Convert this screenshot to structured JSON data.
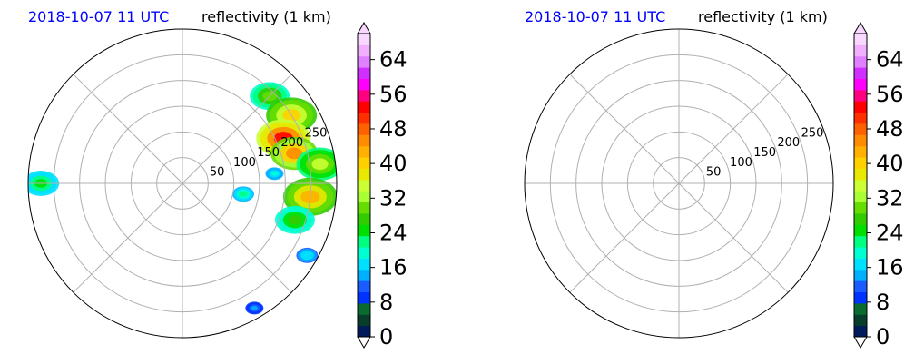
{
  "chart_data": [
    {
      "type": "heatmap",
      "projection": "polar",
      "title_left": "2018-10-07 11 UTC",
      "title_right": "reflectivity (1 km)",
      "title_left_color": "#0000ff",
      "radial_ticks": [
        "50",
        "100",
        "150",
        "200",
        "250"
      ],
      "radial_values": [
        50,
        100,
        150,
        200,
        250
      ],
      "r_max": 300,
      "grid": true,
      "echo_cells": [
        {
          "r": 240,
          "theta": 45,
          "value": 30,
          "size": 22
        },
        {
          "r": 250,
          "theta": 58,
          "value": 40,
          "size": 28
        },
        {
          "r": 215,
          "theta": 66,
          "value": 52,
          "size": 30
        },
        {
          "r": 225,
          "theta": 75,
          "value": 45,
          "size": 26
        },
        {
          "r": 270,
          "theta": 82,
          "value": 35,
          "size": 26
        },
        {
          "r": 250,
          "theta": 96,
          "value": 42,
          "size": 30
        },
        {
          "r": 230,
          "theta": 108,
          "value": 28,
          "size": 22
        },
        {
          "r": 120,
          "theta": 100,
          "value": 22,
          "size": 12
        },
        {
          "r": 180,
          "theta": 84,
          "value": 20,
          "size": 10
        },
        {
          "r": 275,
          "theta": 270,
          "value": 24,
          "size": 20
        },
        {
          "r": 280,
          "theta": 120,
          "value": 18,
          "size": 12
        },
        {
          "r": 280,
          "theta": 150,
          "value": 14,
          "size": 10
        }
      ],
      "colorbar": {
        "ticks": [
          "0",
          "8",
          "16",
          "24",
          "32",
          "40",
          "48",
          "56",
          "64"
        ],
        "min": 0,
        "max": 70,
        "colors": [
          "#001a5c",
          "#083d2b",
          "#0a6b2e",
          "#0033ff",
          "#1a5cff",
          "#00b0ff",
          "#00e0ff",
          "#00ffd0",
          "#00ff80",
          "#00e000",
          "#33cc00",
          "#66dd00",
          "#a8ff33",
          "#ccff33",
          "#e8e800",
          "#ffd000",
          "#ffb000",
          "#ff8c00",
          "#ff6000",
          "#ff3000",
          "#ff0000",
          "#ff0080",
          "#ff00ff",
          "#d030ff",
          "#e080ff",
          "#f0b0ff",
          "#f8d8ff"
        ]
      }
    },
    {
      "type": "heatmap",
      "projection": "polar",
      "title_left": "2018-10-07 11 UTC",
      "title_right": "reflectivity (1 km)",
      "title_left_color": "#0000ff",
      "radial_ticks": [
        "50",
        "100",
        "150",
        "200",
        "250"
      ],
      "radial_values": [
        50,
        100,
        150,
        200,
        250
      ],
      "r_max": 300,
      "grid": true,
      "echo_cells": [],
      "colorbar": {
        "ticks": [
          "0",
          "8",
          "16",
          "24",
          "32",
          "40",
          "48",
          "56",
          "64"
        ],
        "min": 0,
        "max": 70,
        "colors": [
          "#001a5c",
          "#083d2b",
          "#0a6b2e",
          "#0033ff",
          "#1a5cff",
          "#00b0ff",
          "#00e0ff",
          "#00ffd0",
          "#00ff80",
          "#00e000",
          "#33cc00",
          "#66dd00",
          "#a8ff33",
          "#ccff33",
          "#e8e800",
          "#ffd000",
          "#ffb000",
          "#ff8c00",
          "#ff6000",
          "#ff3000",
          "#ff0000",
          "#ff0080",
          "#ff00ff",
          "#d030ff",
          "#e080ff",
          "#f0b0ff",
          "#f8d8ff"
        ]
      }
    }
  ]
}
